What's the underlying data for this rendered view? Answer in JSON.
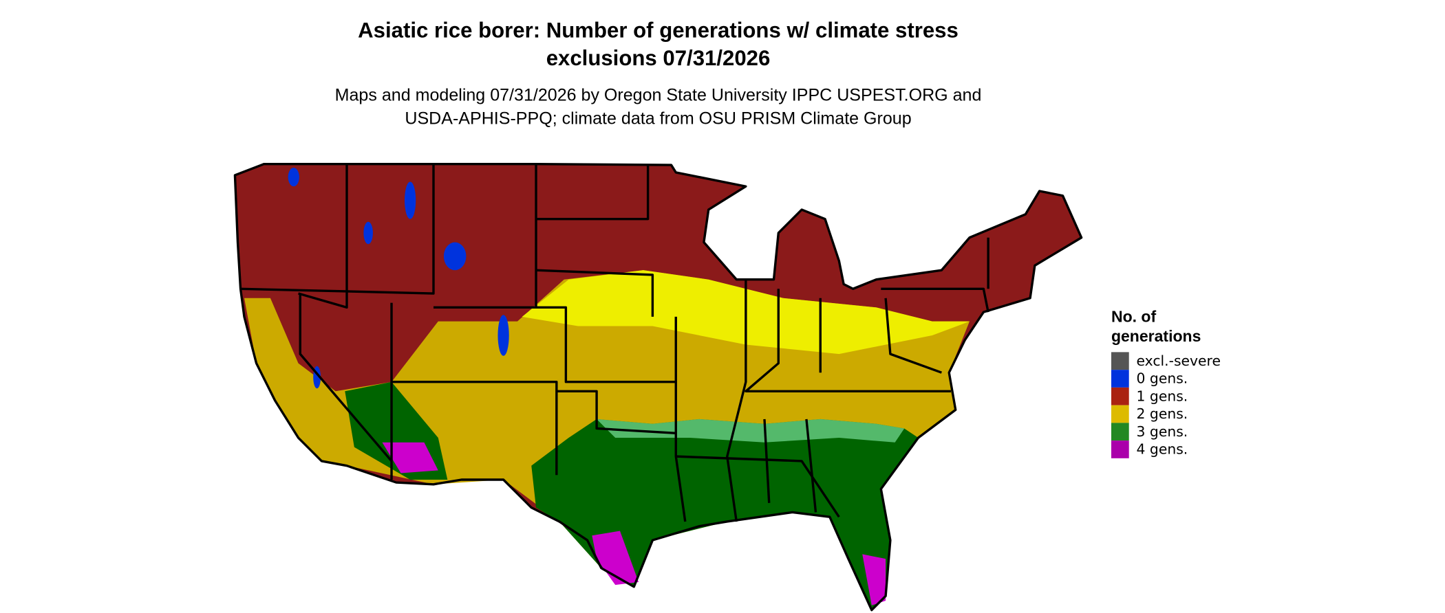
{
  "title": [
    "Asiatic rice borer: Number of generations w/ climate stress",
    "exclusions 07/31/2026"
  ],
  "subtitle": [
    "Maps and modeling 07/31/2026 by Oregon State University IPPC USPEST.ORG and",
    "USDA-APHIS-PPQ; climate data from OSU PRISM Climate Group"
  ],
  "legend": {
    "title": [
      "No. of",
      "generations"
    ],
    "items": [
      {
        "label": "excl.-severe",
        "color": "#555555"
      },
      {
        "label": "0 gens.",
        "color": "#0033dd"
      },
      {
        "label": "1 gens.",
        "color": "#aa2211"
      },
      {
        "label": "2 gens.",
        "color": "#ddbb00"
      },
      {
        "label": "3 gens.",
        "color": "#228822"
      },
      {
        "label": "4 gens.",
        "color": "#aa00aa"
      }
    ]
  }
}
